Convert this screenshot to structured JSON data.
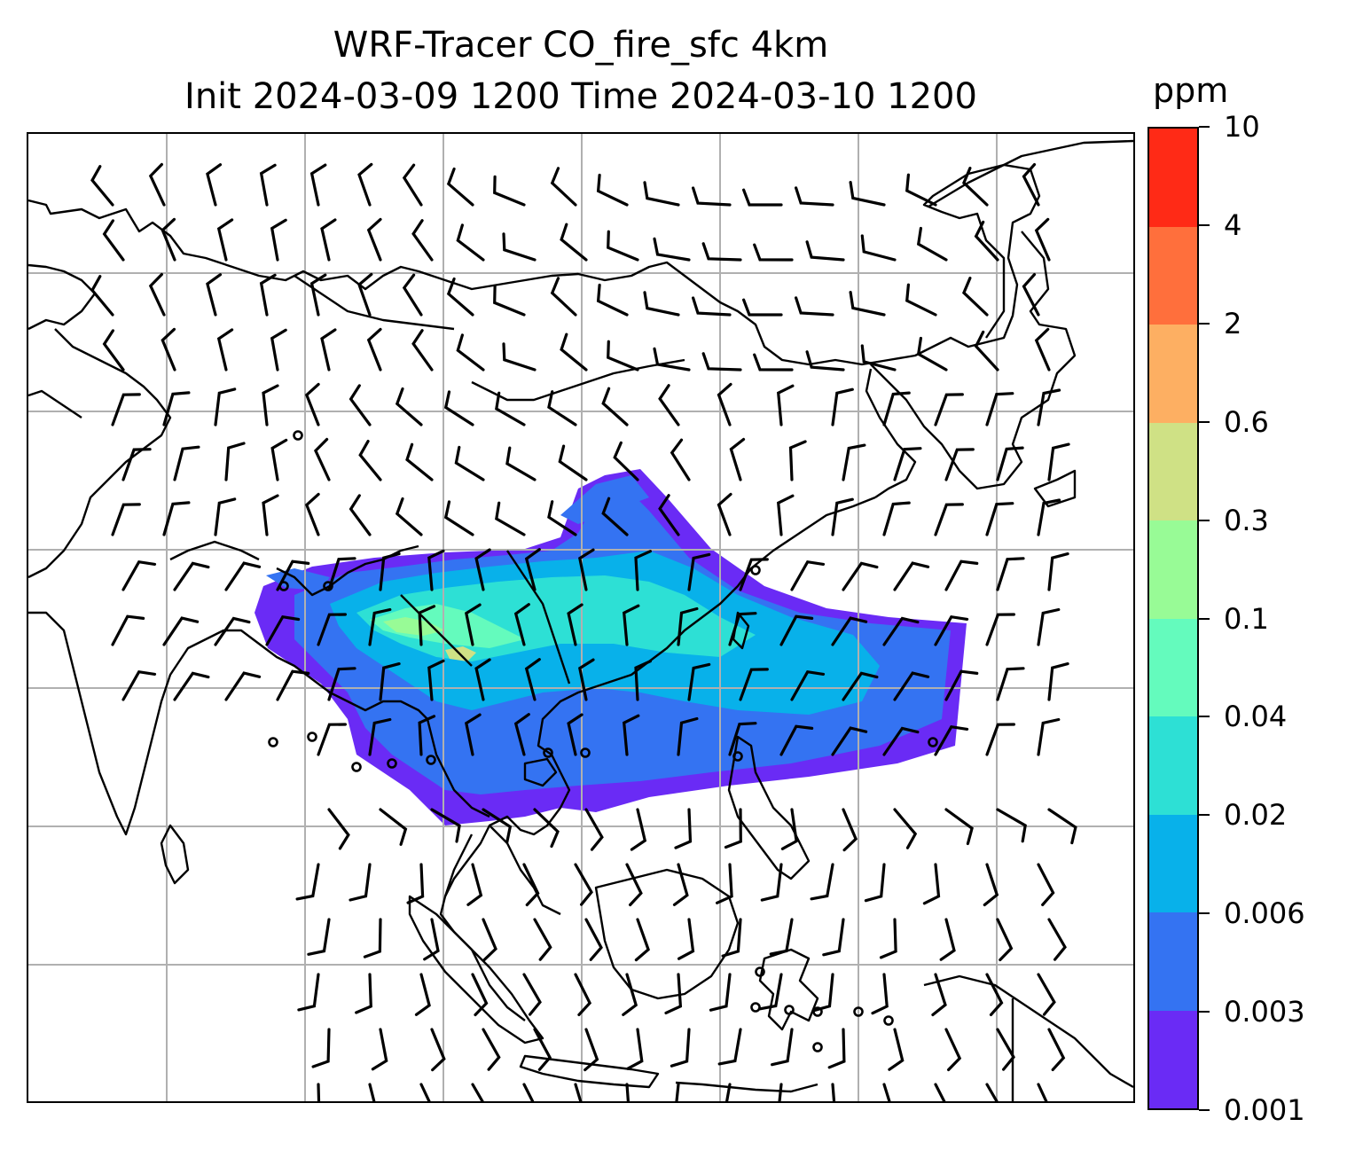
{
  "map": {
    "title_line1": "WRF-Tracer CO_fire_sfc 4km",
    "title_line2": "Init 2024-03-09 1200 Time 2024-03-10 1200",
    "variable": "CO_fire_sfc",
    "overlay": "wind-barbs",
    "coastline_color": "#000000",
    "gridline_color": "#b0b0b0"
  },
  "colorbar": {
    "unit": "ppm",
    "ticks": [
      "0.001",
      "0.003",
      "0.006",
      "0.02",
      "0.04",
      "0.1",
      "0.3",
      "0.6",
      "2",
      "4",
      "10"
    ],
    "colors": [
      "#6a2bf5",
      "#3473f2",
      "#08b1ea",
      "#2de0d5",
      "#64fbbd",
      "#98fb96",
      "#cfe185",
      "#fdaf62",
      "#ff6f3c",
      "#ff2a16"
    ]
  }
}
